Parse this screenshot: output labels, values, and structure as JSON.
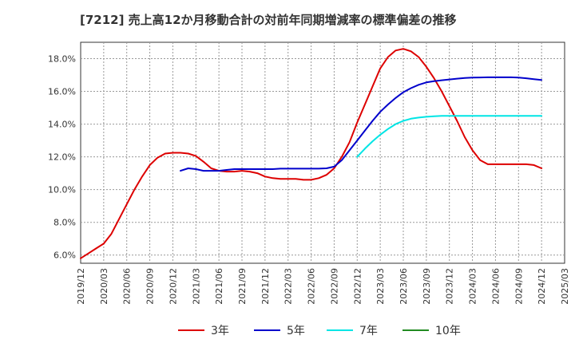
{
  "chart_data": {
    "type": "line",
    "title": "[7212]  売上高12か月移動合計の対前年同期増減率の標準偏差の推移",
    "y_axis": {
      "min": 5.5,
      "max": 19.0,
      "ticks": [
        6.0,
        8.0,
        10.0,
        12.0,
        14.0,
        16.0,
        18.0
      ],
      "tick_labels": [
        "6.0%",
        "8.0%",
        "10.0%",
        "12.0%",
        "14.0%",
        "16.0%",
        "18.0%"
      ]
    },
    "x_axis": {
      "start": "2019/12",
      "tick_labels": [
        "2019/12",
        "2020/03",
        "2020/06",
        "2020/09",
        "2020/12",
        "2021/03",
        "2021/06",
        "2021/09",
        "2021/12",
        "2022/03",
        "2022/06",
        "2022/09",
        "2022/12",
        "2023/03",
        "2023/06",
        "2023/09",
        "2023/12",
        "2024/03",
        "2024/06",
        "2024/09",
        "2024/12",
        "2025/03"
      ]
    },
    "grid": true,
    "legend_position": "bottom",
    "series": [
      {
        "name": "3年",
        "color": "#dd0000",
        "x": [
          "2019/12",
          "2020/01",
          "2020/02",
          "2020/03",
          "2020/04",
          "2020/05",
          "2020/06",
          "2020/07",
          "2020/08",
          "2020/09",
          "2020/10",
          "2020/11",
          "2020/12",
          "2021/01",
          "2021/02",
          "2021/03",
          "2021/04",
          "2021/05",
          "2021/06",
          "2021/07",
          "2021/08",
          "2021/09",
          "2021/10",
          "2021/11",
          "2021/12",
          "2022/01",
          "2022/02",
          "2022/03",
          "2022/04",
          "2022/05",
          "2022/06",
          "2022/07",
          "2022/08",
          "2022/09",
          "2022/10",
          "2022/11",
          "2022/12",
          "2023/01",
          "2023/02",
          "2023/03",
          "2023/04",
          "2023/05",
          "2023/06",
          "2023/07",
          "2023/08",
          "2023/09",
          "2023/10",
          "2023/11",
          "2023/12",
          "2024/01",
          "2024/02",
          "2024/03",
          "2024/04",
          "2024/05",
          "2024/06",
          "2024/07",
          "2024/08",
          "2024/09",
          "2024/10",
          "2024/11",
          "2024/12"
        ],
        "values": [
          5.8,
          6.1,
          6.4,
          6.7,
          7.3,
          8.2,
          9.1,
          10.0,
          10.8,
          11.5,
          11.95,
          12.2,
          12.25,
          12.25,
          12.2,
          12.05,
          11.7,
          11.3,
          11.15,
          11.1,
          11.1,
          11.15,
          11.1,
          11.0,
          10.8,
          10.7,
          10.65,
          10.65,
          10.65,
          10.6,
          10.6,
          10.7,
          10.9,
          11.3,
          12.0,
          12.9,
          14.1,
          15.2,
          16.3,
          17.4,
          18.1,
          18.5,
          18.6,
          18.45,
          18.1,
          17.5,
          16.8,
          16.0,
          15.1,
          14.2,
          13.2,
          12.4,
          11.8,
          11.55,
          11.55,
          11.55,
          11.55,
          11.55,
          11.55,
          11.5,
          11.3
        ]
      },
      {
        "name": "5年",
        "color": "#0000cc",
        "x": [
          "2021/01",
          "2021/02",
          "2021/03",
          "2021/04",
          "2021/05",
          "2021/06",
          "2021/07",
          "2021/08",
          "2021/09",
          "2021/10",
          "2021/11",
          "2021/12",
          "2022/01",
          "2022/02",
          "2022/03",
          "2022/04",
          "2022/05",
          "2022/06",
          "2022/07",
          "2022/08",
          "2022/09",
          "2022/10",
          "2022/11",
          "2022/12",
          "2023/01",
          "2023/02",
          "2023/03",
          "2023/04",
          "2023/05",
          "2023/06",
          "2023/07",
          "2023/08",
          "2023/09",
          "2023/10",
          "2023/11",
          "2023/12",
          "2024/01",
          "2024/02",
          "2024/03",
          "2024/04",
          "2024/05",
          "2024/06",
          "2024/07",
          "2024/08",
          "2024/09",
          "2024/10",
          "2024/11",
          "2024/12"
        ],
        "values": [
          11.15,
          11.3,
          11.25,
          11.15,
          11.15,
          11.15,
          11.2,
          11.25,
          11.25,
          11.25,
          11.25,
          11.25,
          11.25,
          11.28,
          11.28,
          11.28,
          11.28,
          11.28,
          11.28,
          11.3,
          11.4,
          11.8,
          12.4,
          13.0,
          13.6,
          14.2,
          14.75,
          15.2,
          15.6,
          15.95,
          16.2,
          16.4,
          16.55,
          16.62,
          16.68,
          16.73,
          16.78,
          16.82,
          16.84,
          16.85,
          16.86,
          16.86,
          16.86,
          16.86,
          16.84,
          16.8,
          16.75,
          16.7
        ]
      },
      {
        "name": "7年",
        "color": "#00e5e5",
        "x": [
          "2022/12",
          "2023/01",
          "2023/02",
          "2023/03",
          "2023/04",
          "2023/05",
          "2023/06",
          "2023/07",
          "2023/08",
          "2023/09",
          "2023/10",
          "2023/11",
          "2023/12",
          "2024/01",
          "2024/02",
          "2024/03",
          "2024/04",
          "2024/05",
          "2024/06",
          "2024/07",
          "2024/08",
          "2024/09",
          "2024/10",
          "2024/11",
          "2024/12"
        ],
        "values": [
          12.0,
          12.5,
          12.95,
          13.35,
          13.7,
          14.0,
          14.2,
          14.33,
          14.4,
          14.45,
          14.48,
          14.5,
          14.5,
          14.5,
          14.5,
          14.5,
          14.5,
          14.5,
          14.5,
          14.5,
          14.5,
          14.5,
          14.5,
          14.5,
          14.5
        ]
      },
      {
        "name": "10年",
        "color": "#228b22",
        "x": [],
        "values": []
      }
    ]
  }
}
